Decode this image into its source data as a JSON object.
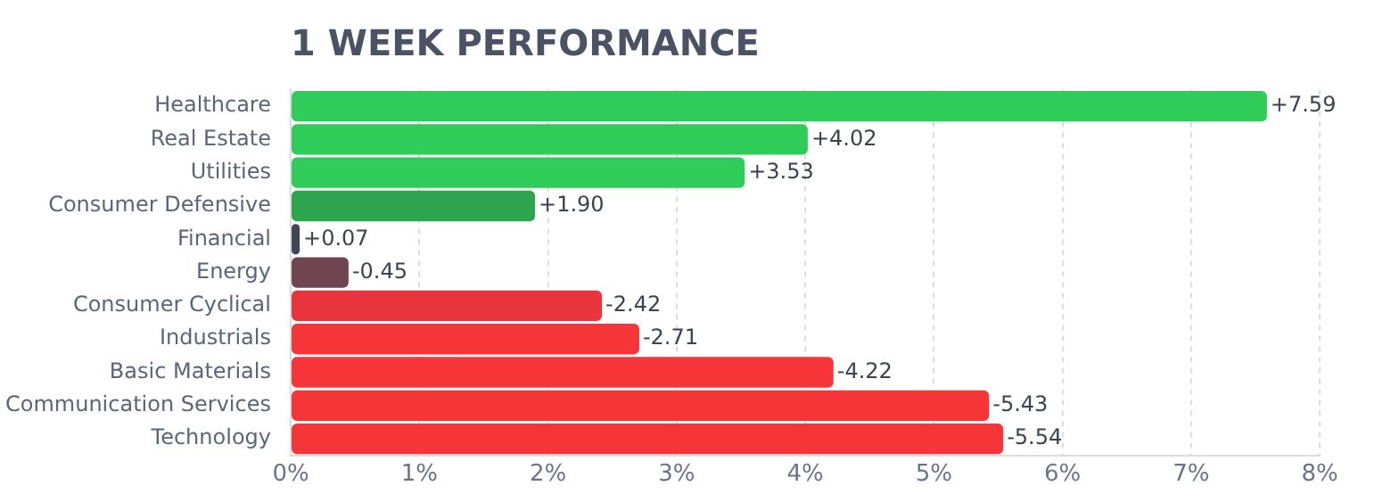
{
  "chart_data": {
    "type": "bar",
    "orientation": "horizontal",
    "title": "1 WEEK PERFORMANCE",
    "categories": [
      "Healthcare",
      "Real Estate",
      "Utilities",
      "Consumer Defensive",
      "Financial",
      "Energy",
      "Consumer Cyclical",
      "Industrials",
      "Basic Materials",
      "Communication Services",
      "Technology"
    ],
    "values": [
      7.59,
      4.02,
      3.53,
      1.9,
      0.07,
      -0.45,
      -2.42,
      -2.71,
      -4.22,
      -5.43,
      -5.54
    ],
    "base": [
      0,
      0,
      0,
      0,
      0,
      0.45,
      2.42,
      2.71,
      4.22,
      5.43,
      5.54
    ],
    "value_labels": [
      "+7.59",
      "+4.02",
      "+3.53",
      "+1.90",
      "+0.07",
      "-0.45",
      "-2.42",
      "-2.71",
      "-4.22",
      "-5.43",
      "-5.54"
    ],
    "colors": [
      "#30cc5a",
      "#30cc5a",
      "#30cc5a",
      "#2fa44f",
      "#414554",
      "#6e4550",
      "#e8353d",
      "#f63538",
      "#f63538",
      "#f63538",
      "#f63538"
    ],
    "xlim": [
      0,
      8
    ],
    "xticks": [
      {
        "value": 0,
        "label": "0%"
      },
      {
        "value": 1,
        "label": "1%"
      },
      {
        "value": 2,
        "label": "2%"
      },
      {
        "value": 3,
        "label": "3%"
      },
      {
        "value": 4,
        "label": "4%"
      },
      {
        "value": 5,
        "label": "5%"
      },
      {
        "value": 6,
        "label": "6%"
      },
      {
        "value": 7,
        "label": "7%"
      },
      {
        "value": 8,
        "label": "8%"
      }
    ],
    "grid": "x",
    "legend": false
  }
}
